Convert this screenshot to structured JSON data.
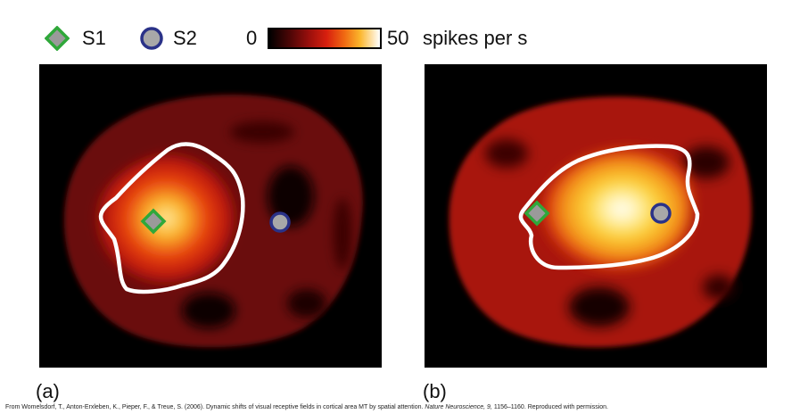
{
  "legend": {
    "s1_label": "S1",
    "s2_label": "S2",
    "colorbar_min": "0",
    "colorbar_max": "50",
    "colorbar_unit": "spikes per s"
  },
  "panels": [
    {
      "label": "(a)"
    },
    {
      "label": "(b)"
    }
  ],
  "citation": {
    "prefix": "From Womelsdorf, T., Anton-Erxleben, K., Pieper, F., & Treue, S. (2006). Dynamic shifts of visual receptive fields in cortical area MT by spatial attention.",
    "journal": "Nature Neuroscience, 9,",
    "suffix": "1156–1160. Reproduced with permission."
  },
  "colors": {
    "s1_fill": "#9a9a9a",
    "s1_stroke": "#2fa83a",
    "s2_fill": "#a8a8a8",
    "s2_stroke": "#2a3288",
    "contour": "#ffffff",
    "heat_low": "#5a0808",
    "heat_mid": "#d8200e",
    "heat_high": "#fff6c8"
  }
}
